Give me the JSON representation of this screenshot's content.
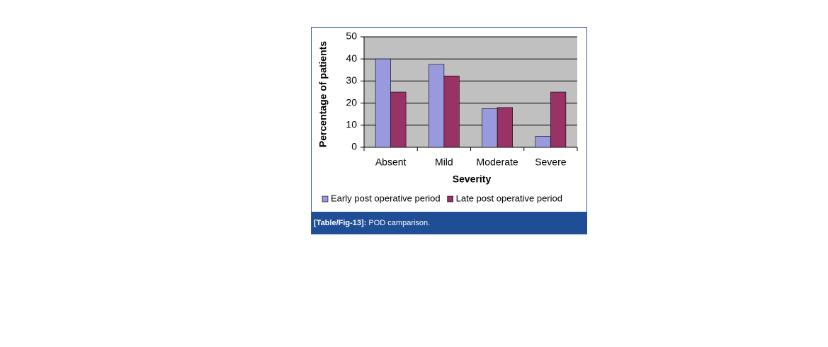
{
  "chart_data": {
    "type": "bar",
    "x_label": "Severity",
    "y_label": "Percentage of patients",
    "categories": [
      "Absent",
      "Mild",
      "Moderate",
      "Severe"
    ],
    "series": [
      {
        "name": "Early post operative period",
        "color": "#9999dd",
        "values": [
          40,
          37.5,
          17.5,
          5
        ]
      },
      {
        "name": "Late post operative period",
        "color": "#993366",
        "values": [
          25,
          32.3,
          18,
          25
        ]
      }
    ],
    "ylim": [
      0,
      50
    ],
    "yticks": [
      0,
      10,
      20,
      30,
      40,
      50
    ],
    "grid": true,
    "legend": "bottom",
    "plot_background": "#c0c0c0"
  },
  "caption": {
    "label": "[Table/Fig-13]:",
    "text": " POD camparison."
  }
}
